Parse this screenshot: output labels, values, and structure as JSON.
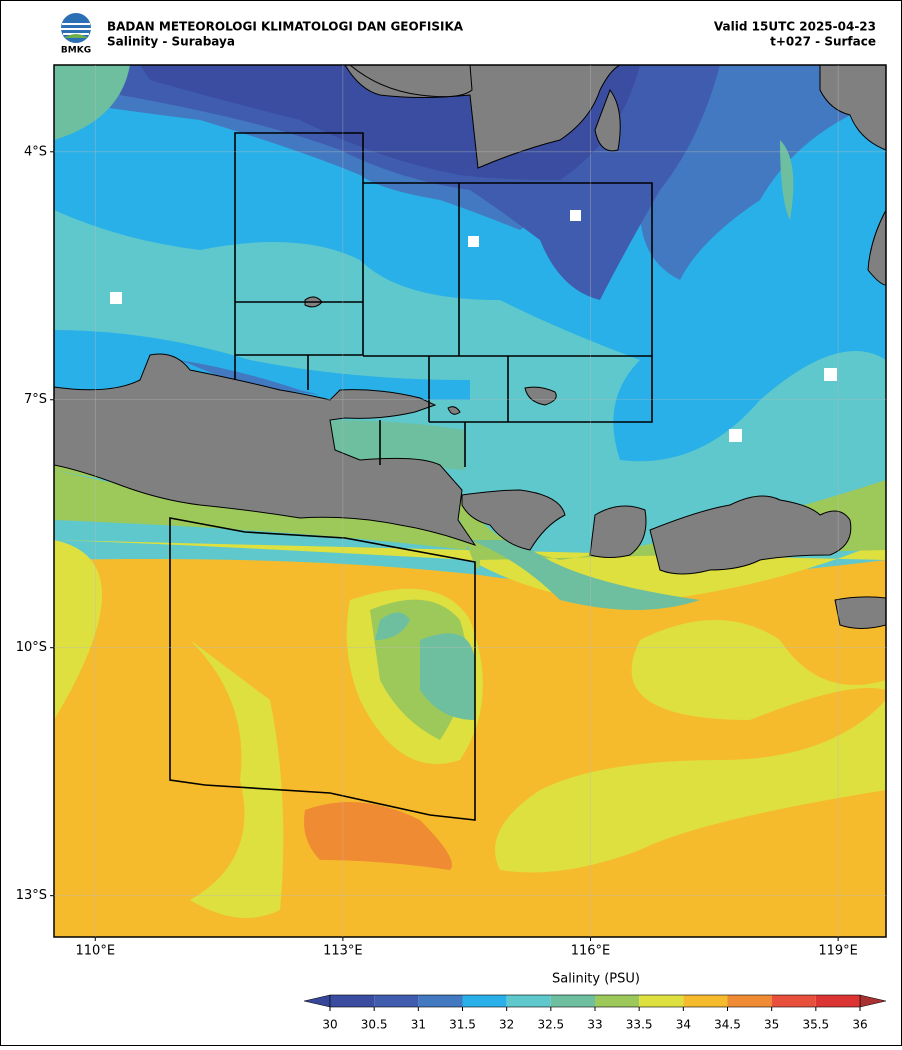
{
  "header": {
    "agency": "BADAN METEOROLOGI KLIMATOLOGI DAN GEOFISIKA",
    "product": "Salinity - Surabaya",
    "valid": "Valid 15UTC 2025-04-23",
    "run": "t+027 - Surface",
    "logo_text": "BMKG"
  },
  "map": {
    "xlim": [
      109.5,
      119.58
    ],
    "ylim": [
      -13.5,
      -2.95
    ],
    "grid": true,
    "xticks": [
      {
        "value": 110,
        "label": "110°E"
      },
      {
        "value": 113,
        "label": "113°E"
      },
      {
        "value": 116,
        "label": "116°E"
      },
      {
        "value": 119,
        "label": "119°E"
      }
    ],
    "yticks": [
      {
        "value": -4,
        "label": "4°S"
      },
      {
        "value": -7,
        "label": "7°S"
      },
      {
        "value": -10,
        "label": "10°S"
      },
      {
        "value": -13,
        "label": "13°S"
      }
    ]
  },
  "colorbar": {
    "label": "Salinity (PSU)",
    "ticks": [
      30,
      30.5,
      31,
      31.5,
      32,
      32.5,
      33,
      33.5,
      34,
      34.5,
      35,
      35.5,
      36
    ],
    "colors": [
      "#3a4da0",
      "#3f5cae",
      "#4379c0",
      "#29b0e8",
      "#5ec8cc",
      "#6dbfa0",
      "#9dc95a",
      "#dde03e",
      "#f6bb2c",
      "#ef8c33",
      "#e8503c",
      "#db3432"
    ],
    "under_color": "#36479a",
    "over_color": "#a83232"
  }
}
